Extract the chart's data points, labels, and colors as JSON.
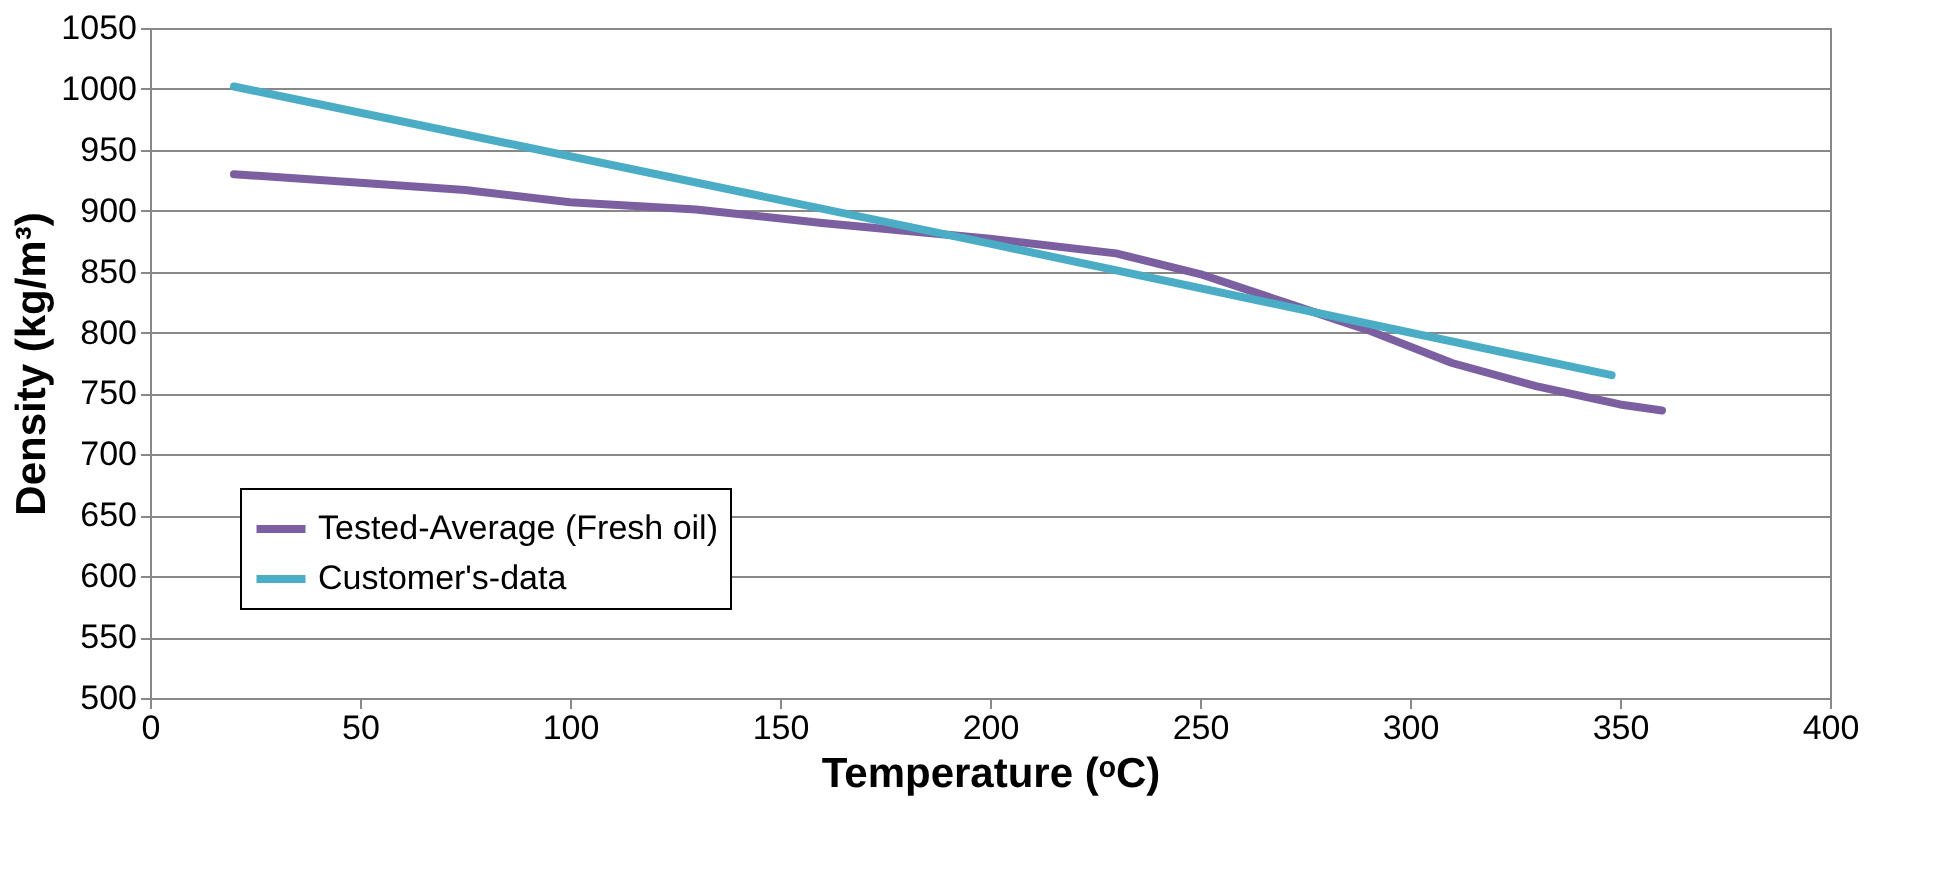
{
  "chart_data": {
    "type": "line",
    "xlabel": "Temperature (ᵒC)",
    "ylabel": "Density (kg/m³)",
    "xlim": [
      0,
      400
    ],
    "xticks": [
      0,
      50,
      100,
      150,
      200,
      250,
      300,
      350,
      400
    ],
    "ylim": [
      500,
      1050
    ],
    "yticks": [
      500,
      550,
      600,
      650,
      700,
      750,
      800,
      850,
      900,
      950,
      1000,
      1050
    ],
    "grid": "y",
    "legend": "bottom left",
    "marker": "none",
    "line_style": "solid",
    "series": [
      {
        "name": "Tested-Average (Fresh oil)",
        "color": "#7b5fa0",
        "x": [
          20,
          50,
          75,
          100,
          130,
          160,
          200,
          230,
          250,
          270,
          290,
          310,
          330,
          350,
          360
        ],
        "values": [
          930,
          923,
          917,
          907,
          901,
          890,
          877,
          865,
          848,
          825,
          802,
          775,
          756,
          741,
          736
        ]
      },
      {
        "name": "Customer's-data",
        "color": "#4bacc6",
        "x": [
          20,
          200,
          348
        ],
        "values": [
          1002,
          873,
          765
        ]
      }
    ]
  }
}
